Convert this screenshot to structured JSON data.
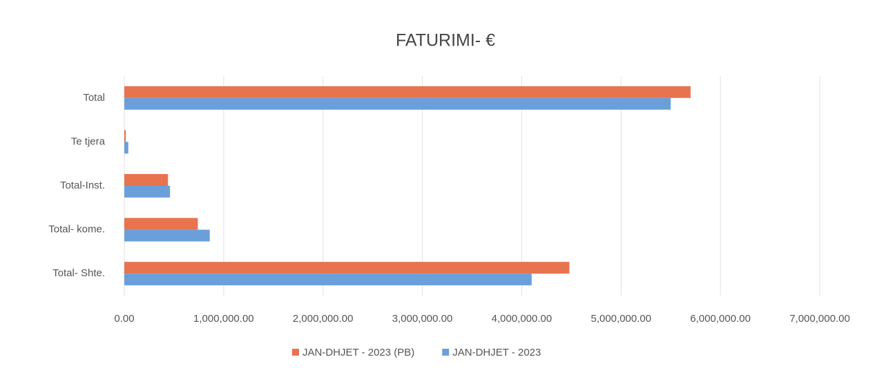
{
  "chart_data": {
    "type": "bar",
    "orientation": "horizontal",
    "title": "FATURIMI- €",
    "categories": [
      "Total",
      "Te tjera",
      "Total-Inst.",
      "Total- kome.",
      "Total- Shte."
    ],
    "series": [
      {
        "name": "JAN-DHJET - 2023 (PB)",
        "color": "#e8734f",
        "values": [
          5700000,
          15000,
          440000,
          740000,
          4480000
        ]
      },
      {
        "name": "JAN-DHJET - 2023",
        "color": "#6b9fd9",
        "values": [
          5500000,
          40000,
          460000,
          860000,
          4100000
        ]
      }
    ],
    "xlim": [
      0,
      7000000
    ],
    "xticks": [
      {
        "value": 0,
        "label": "0.00"
      },
      {
        "value": 1000000,
        "label": "1,000,000.00"
      },
      {
        "value": 2000000,
        "label": "2,000,000.00"
      },
      {
        "value": 3000000,
        "label": "3,000,000.00"
      },
      {
        "value": 4000000,
        "label": "4,000,000.00"
      },
      {
        "value": 5000000,
        "label": "5,000,000.00"
      },
      {
        "value": 6000000,
        "label": "6,000,000.00"
      },
      {
        "value": 7000000,
        "label": "7,000,000.00"
      }
    ],
    "grid": true,
    "legend": "bottom"
  }
}
